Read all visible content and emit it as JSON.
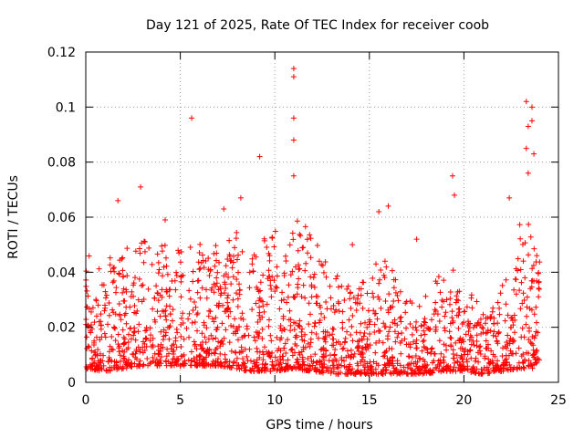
{
  "chart_data": {
    "type": "scatter",
    "title": "Day 121 of 2025, Rate Of TEC Index for receiver coob",
    "xlabel": "GPS time / hours",
    "ylabel": "ROTI / TECUs",
    "xlim": [
      0,
      25
    ],
    "ylim": [
      0,
      0.12
    ],
    "x_ticks": [
      0,
      5,
      10,
      15,
      20,
      25
    ],
    "y_ticks": [
      0,
      0.02,
      0.04,
      0.06,
      0.08,
      0.1,
      0.12
    ],
    "x_tick_labels": [
      "0",
      "5",
      "10",
      "15",
      "20",
      "25"
    ],
    "y_tick_labels": [
      "0",
      "0.02",
      "0.04",
      "0.06",
      "0.08",
      "0.1",
      "0.12"
    ],
    "grid": true,
    "marker": "+",
    "color": "#ff0000",
    "notable_points": [
      {
        "x": 11.0,
        "y": 0.114
      },
      {
        "x": 11.0,
        "y": 0.111
      },
      {
        "x": 5.6,
        "y": 0.096
      },
      {
        "x": 11.0,
        "y": 0.096
      },
      {
        "x": 11.0,
        "y": 0.088
      },
      {
        "x": 11.0,
        "y": 0.075
      },
      {
        "x": 4.2,
        "y": 0.059
      },
      {
        "x": 9.2,
        "y": 0.082
      },
      {
        "x": 2.9,
        "y": 0.071
      },
      {
        "x": 19.4,
        "y": 0.075
      },
      {
        "x": 19.5,
        "y": 0.068
      },
      {
        "x": 23.3,
        "y": 0.102
      },
      {
        "x": 23.6,
        "y": 0.1
      },
      {
        "x": 23.6,
        "y": 0.095
      },
      {
        "x": 23.4,
        "y": 0.093
      },
      {
        "x": 23.3,
        "y": 0.085
      },
      {
        "x": 23.7,
        "y": 0.083
      },
      {
        "x": 23.4,
        "y": 0.076
      },
      {
        "x": 16.0,
        "y": 0.064
      },
      {
        "x": 15.5,
        "y": 0.062
      },
      {
        "x": 8.2,
        "y": 0.067
      },
      {
        "x": 1.7,
        "y": 0.066
      },
      {
        "x": 22.4,
        "y": 0.067
      },
      {
        "x": 7.3,
        "y": 0.063
      },
      {
        "x": 14.1,
        "y": 0.05
      },
      {
        "x": 17.5,
        "y": 0.052
      }
    ],
    "envelope": {
      "description": "dense scatter of ROTI samples over 24 hours",
      "x": [
        0,
        1,
        2,
        3,
        4,
        5,
        6,
        7,
        8,
        8.5,
        9,
        10,
        11,
        12,
        13,
        14,
        15,
        16,
        17,
        18,
        19,
        20,
        21,
        22,
        23,
        24
      ],
      "typical_max": [
        0.048,
        0.045,
        0.048,
        0.052,
        0.05,
        0.05,
        0.052,
        0.05,
        0.058,
        0.04,
        0.05,
        0.055,
        0.06,
        0.055,
        0.04,
        0.038,
        0.042,
        0.045,
        0.03,
        0.032,
        0.045,
        0.04,
        0.025,
        0.035,
        0.06,
        0.055
      ],
      "typical_min": [
        0.005,
        0.004,
        0.005,
        0.006,
        0.006,
        0.006,
        0.006,
        0.006,
        0.005,
        0.004,
        0.004,
        0.004,
        0.005,
        0.004,
        0.003,
        0.003,
        0.003,
        0.003,
        0.003,
        0.003,
        0.004,
        0.004,
        0.003,
        0.004,
        0.005,
        0.005
      ]
    }
  }
}
